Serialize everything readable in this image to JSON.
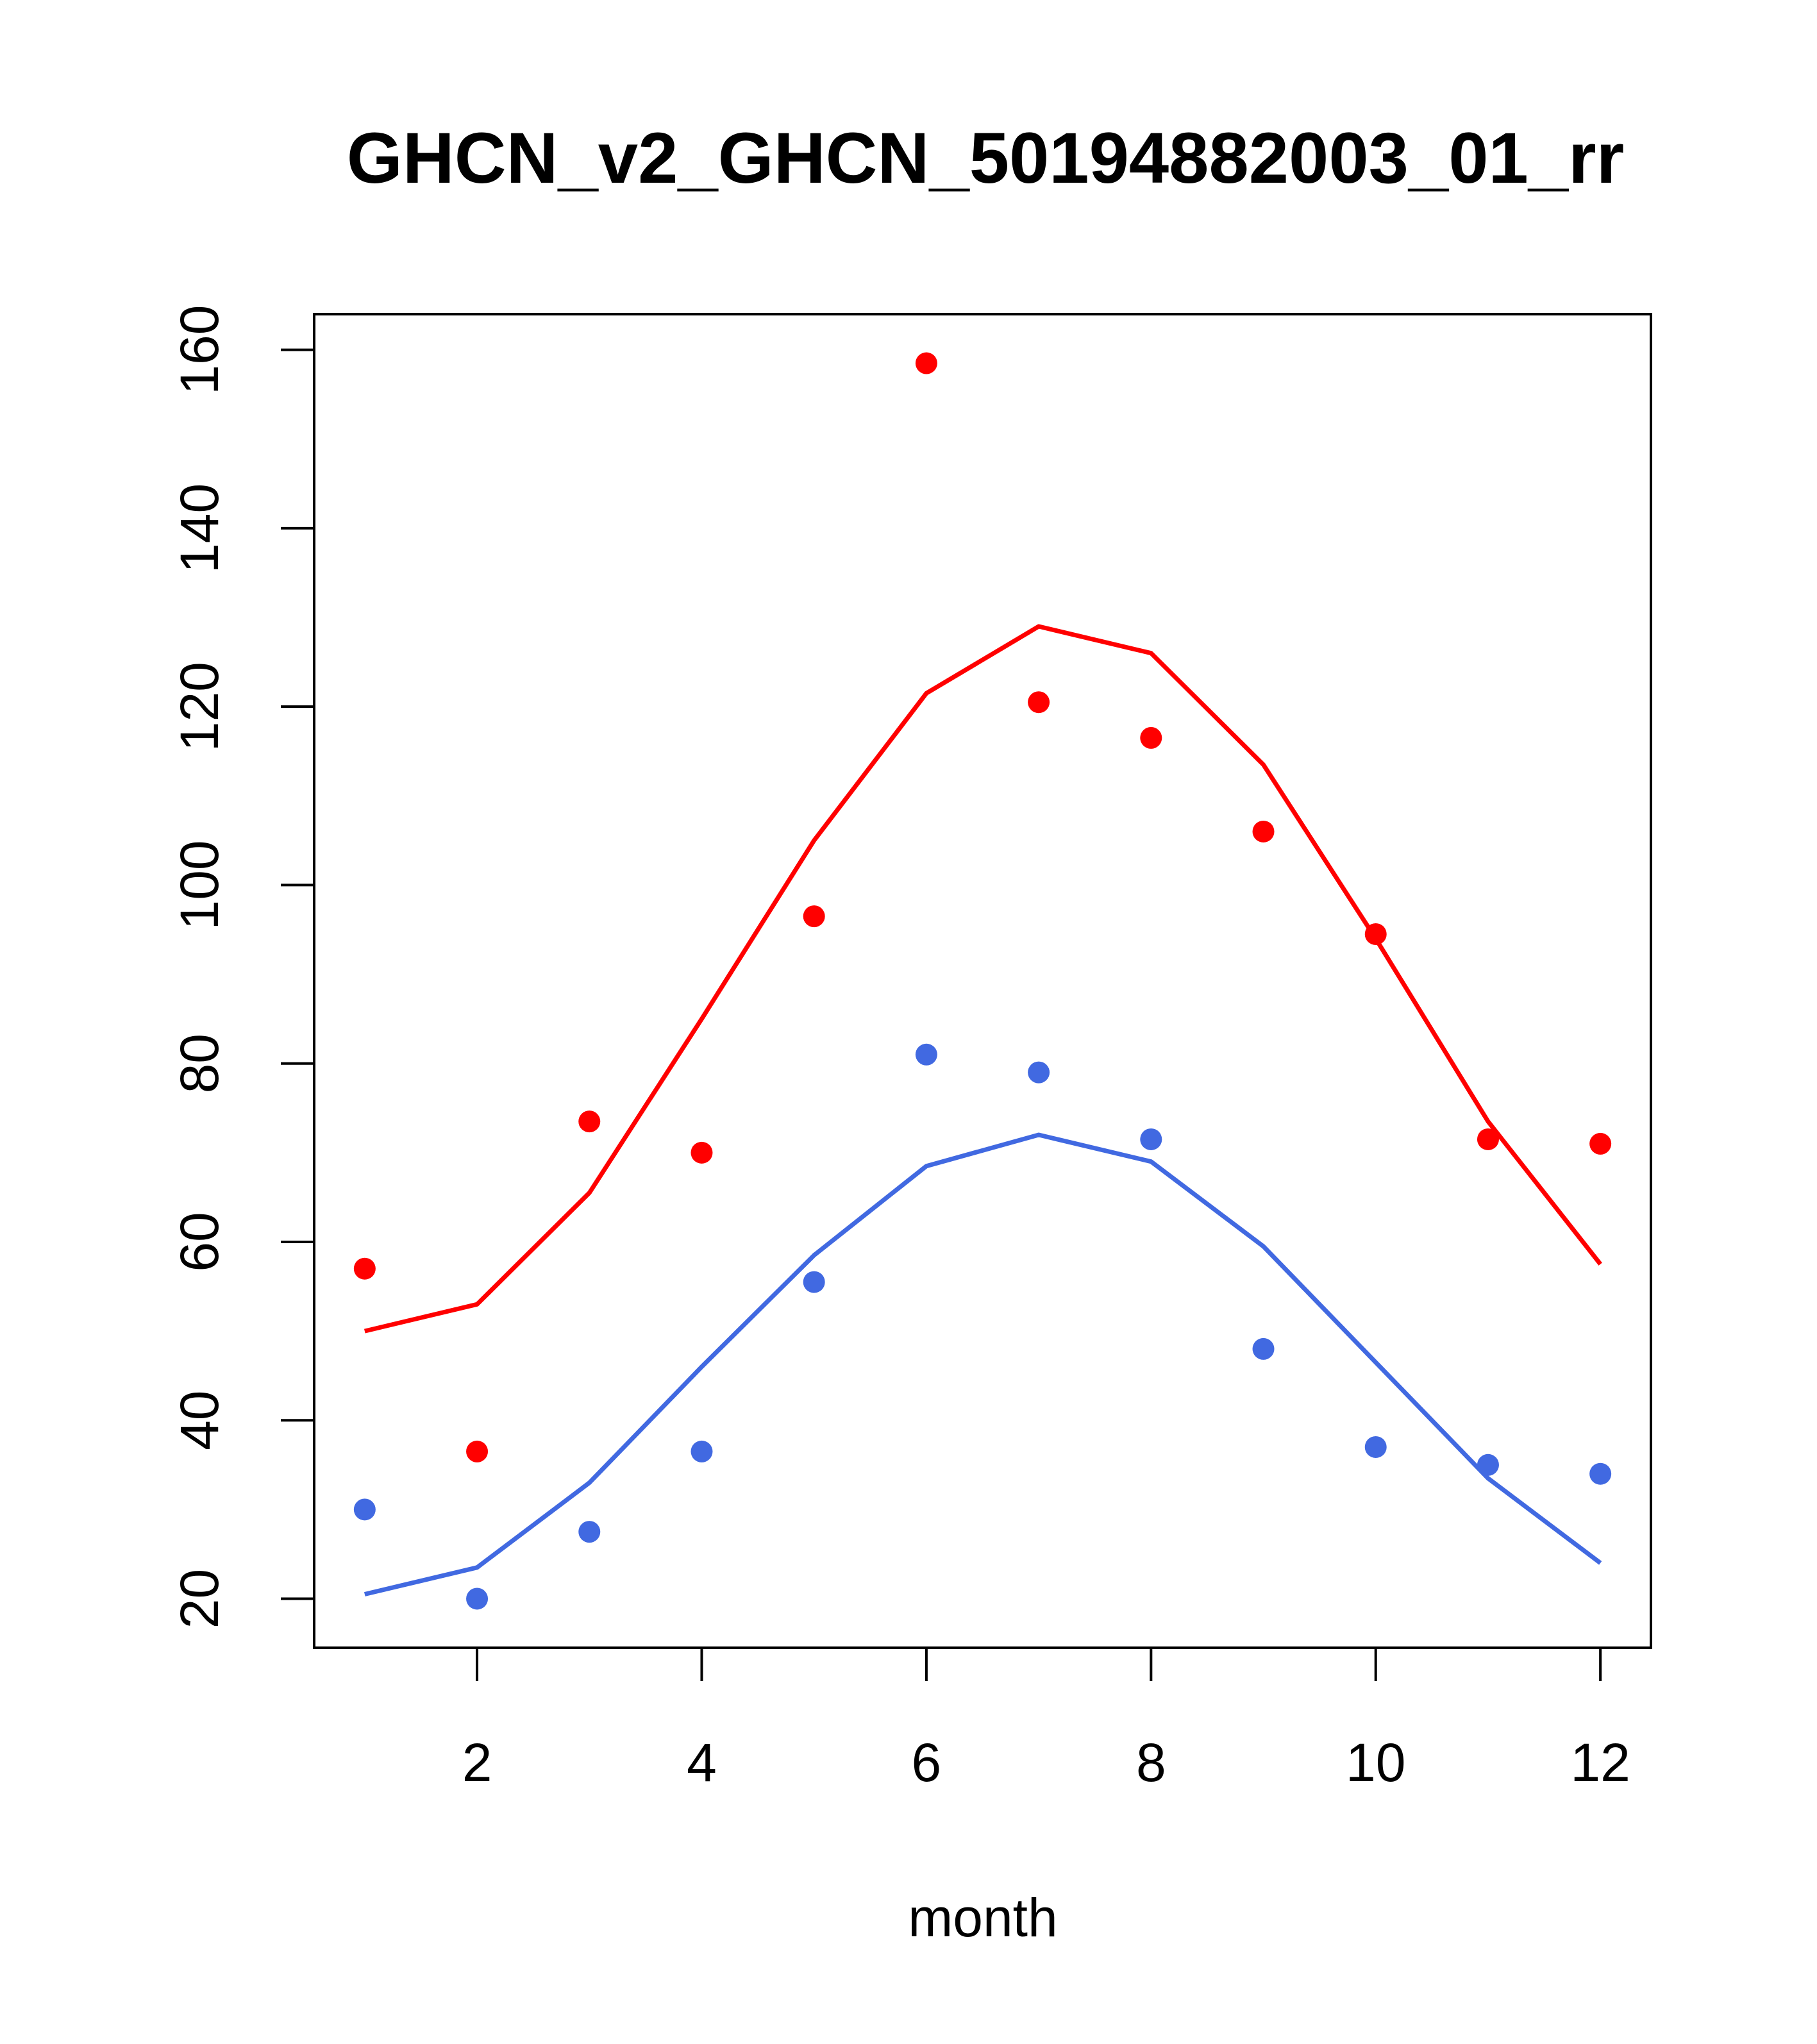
{
  "chart_data": {
    "type": "line",
    "title": "GHCN_v2_GHCN_50194882003_01_rr",
    "xlabel": "month",
    "ylabel": "",
    "xlim": [
      0.55,
      12.45
    ],
    "ylim": [
      14.5,
      164
    ],
    "xticks": [
      2,
      4,
      6,
      8,
      10,
      12
    ],
    "yticks": [
      20,
      40,
      60,
      80,
      100,
      120,
      140,
      160
    ],
    "x": [
      1,
      2,
      3,
      4,
      5,
      6,
      7,
      8,
      9,
      10,
      11,
      12
    ],
    "grid": false,
    "series": [
      {
        "color": "#ff0000",
        "line": [
          50,
          53,
          65.5,
          85,
          105,
          121.5,
          129,
          126,
          113.5,
          94,
          73.5,
          57.5
        ],
        "points": [
          57,
          36.5,
          73.5,
          70,
          96.5,
          158.5,
          120.5,
          116.5,
          106,
          94.5,
          71.5,
          71
        ]
      },
      {
        "color": "#4169e1",
        "line": [
          20.5,
          23.5,
          33,
          46,
          58.5,
          68.5,
          72,
          69,
          59.5,
          46.5,
          33.5,
          24
        ],
        "points": [
          30,
          20,
          27.5,
          36.5,
          55.5,
          81,
          79,
          71.5,
          48,
          37,
          35,
          34
        ]
      }
    ]
  }
}
